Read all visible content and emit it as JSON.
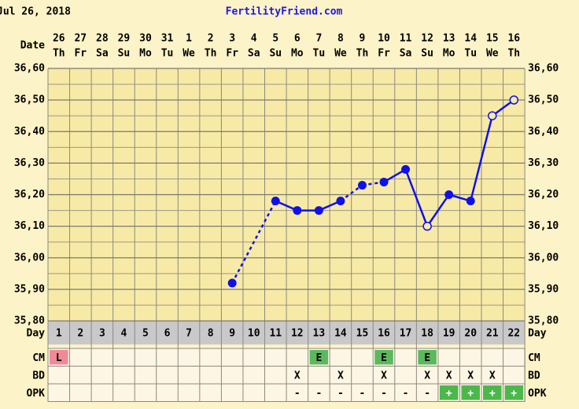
{
  "chart_data": {
    "type": "line",
    "title": "Jul 26, 2018",
    "subtitle": "FertilityFriend.com",
    "date_label": "Date",
    "day_label": "Day",
    "categories": [
      "1",
      "2",
      "3",
      "4",
      "5",
      "6",
      "7",
      "8",
      "9",
      "10",
      "11",
      "12",
      "13",
      "14",
      "15",
      "16",
      "17",
      "18",
      "19",
      "20",
      "21",
      "22"
    ],
    "dates": [
      "26",
      "27",
      "28",
      "29",
      "30",
      "31",
      "1",
      "2",
      "3",
      "4",
      "5",
      "6",
      "7",
      "8",
      "9",
      "10",
      "11",
      "12",
      "13",
      "14",
      "15",
      "16"
    ],
    "weekdays": [
      "Th",
      "Fr",
      "Sa",
      "Su",
      "Mo",
      "Tu",
      "We",
      "Th",
      "Fr",
      "Sa",
      "Su",
      "Mo",
      "Tu",
      "We",
      "Th",
      "Fr",
      "Sa",
      "Su",
      "Mo",
      "Tu",
      "We",
      "Th"
    ],
    "values": [
      null,
      null,
      null,
      null,
      null,
      null,
      null,
      null,
      35.92,
      null,
      36.18,
      36.15,
      36.15,
      36.18,
      36.23,
      36.24,
      36.28,
      36.1,
      36.2,
      36.18,
      36.45,
      36.5
    ],
    "marker_styles": [
      null,
      null,
      null,
      null,
      null,
      null,
      null,
      null,
      "filled",
      null,
      "filled",
      "filled",
      "filled",
      "filled",
      "filled",
      "filled",
      "filled",
      "open",
      "filled",
      "filled",
      "open",
      "open"
    ],
    "line_styles": [
      null,
      null,
      null,
      null,
      null,
      null,
      null,
      null,
      null,
      null,
      "dashed",
      "solid",
      "solid",
      "solid",
      "dashed",
      "dashed",
      "solid",
      "solid",
      "solid",
      "solid",
      "solid",
      "solid"
    ],
    "color": "#1010ee",
    "ylim": [
      35.8,
      36.6
    ],
    "yticks": [
      {
        "value": 35.8,
        "label": "35,80"
      },
      {
        "value": 35.9,
        "label": "35,90"
      },
      {
        "value": 36.0,
        "label": "36,00"
      },
      {
        "value": 36.1,
        "label": "36,10"
      },
      {
        "value": 36.2,
        "label": "36,20"
      },
      {
        "value": 36.3,
        "label": "36,30"
      },
      {
        "value": 36.4,
        "label": "36,40"
      },
      {
        "value": 36.5,
        "label": "36,50"
      },
      {
        "value": 36.6,
        "label": "36,60"
      }
    ],
    "grid": true,
    "rows": [
      {
        "name": "CM",
        "values": [
          "L",
          null,
          null,
          null,
          null,
          null,
          null,
          null,
          null,
          null,
          null,
          null,
          "E",
          null,
          null,
          "E",
          null,
          "E",
          null,
          null,
          null,
          null
        ],
        "colors": [
          "#f08a96",
          null,
          null,
          null,
          null,
          null,
          null,
          null,
          null,
          null,
          null,
          null,
          "#5cb85c",
          null,
          null,
          "#5cb85c",
          null,
          "#5cb85c",
          null,
          null,
          null,
          null
        ]
      },
      {
        "name": "BD",
        "values": [
          null,
          null,
          null,
          null,
          null,
          null,
          null,
          null,
          null,
          null,
          null,
          "X",
          null,
          "X",
          null,
          "X",
          null,
          "X",
          "X",
          "X",
          "X",
          null
        ],
        "colors": [
          null,
          null,
          null,
          null,
          null,
          null,
          null,
          null,
          null,
          null,
          null,
          null,
          null,
          null,
          null,
          null,
          null,
          null,
          null,
          null,
          null,
          null
        ]
      },
      {
        "name": "OPK",
        "values": [
          null,
          null,
          null,
          null,
          null,
          null,
          null,
          null,
          null,
          null,
          null,
          "-",
          "-",
          "-",
          "-",
          "-",
          "-",
          "-",
          "+",
          "+",
          "+",
          "+"
        ],
        "colors": [
          null,
          null,
          null,
          null,
          null,
          null,
          null,
          null,
          null,
          null,
          null,
          null,
          null,
          null,
          null,
          null,
          null,
          null,
          "#4cb84c",
          "#4cb84c",
          "#4cb84c",
          "#4cb84c"
        ]
      }
    ]
  }
}
